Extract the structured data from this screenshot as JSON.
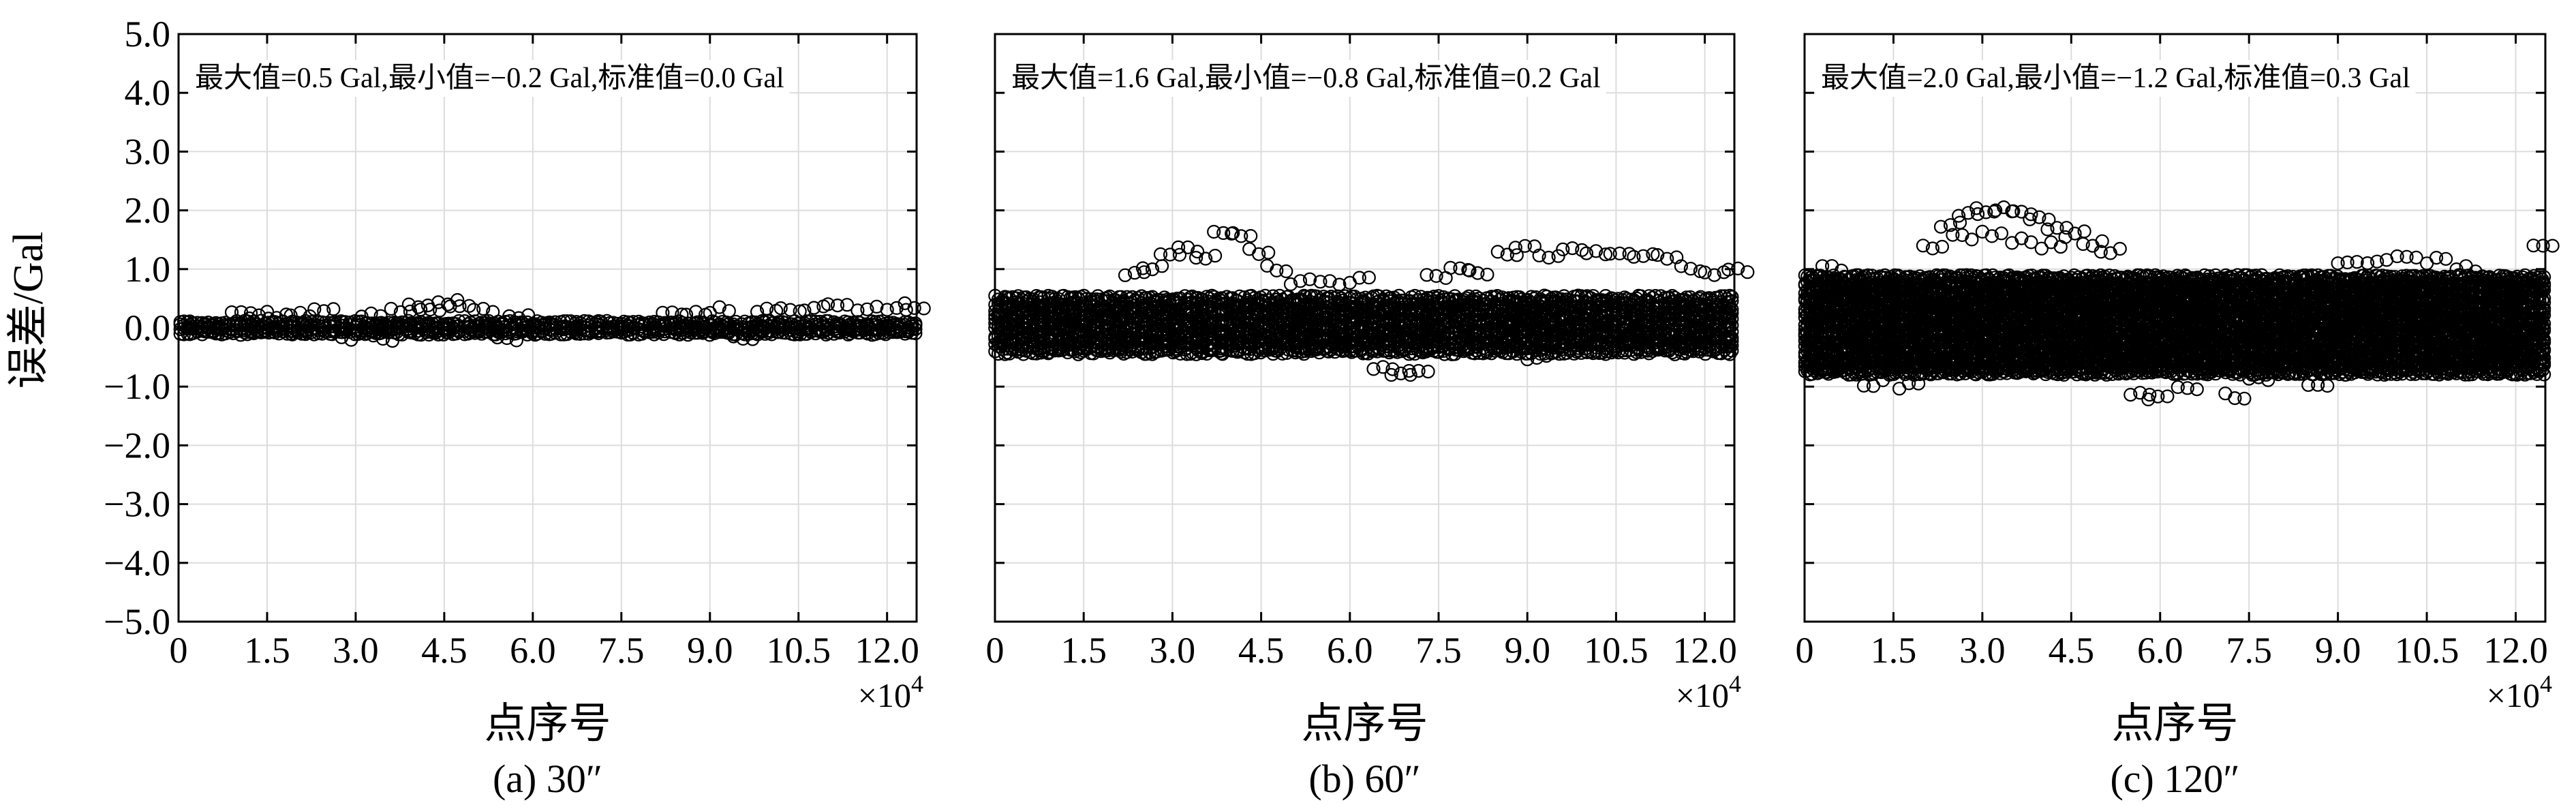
{
  "figure": {
    "ylabel": "误差/Gal",
    "xlabel": "点序号",
    "x_multiplier": "×10",
    "x_multiplier_exp": "4",
    "scatter_color": "#000000",
    "grid_color": "#dcdcdc"
  },
  "chart_data": [
    {
      "type": "scatter",
      "caption": "(a) 30″",
      "annotation": "最大值=0.5 Gal,最小值=−0.2 Gal,标准值=0.0 Gal",
      "xlabel": "点序号",
      "ylabel": "误差/Gal",
      "xlim": [
        0,
        12.5
      ],
      "ylim": [
        -5.0,
        5.0
      ],
      "x_ticks": [
        0,
        1.5,
        3.0,
        4.5,
        6.0,
        7.5,
        9.0,
        10.5,
        12.0
      ],
      "x_tick_labels": [
        "0",
        "1.5",
        "3.0",
        "4.5",
        "6.0",
        "7.5",
        "9.0",
        "10.5",
        "12.0"
      ],
      "y_ticks": [
        -5.0,
        -4.0,
        -3.0,
        -2.0,
        -1.0,
        0.0,
        1.0,
        2.0,
        3.0,
        4.0,
        5.0
      ],
      "y_tick_labels": [
        "−5.0",
        "−4.0",
        "−3.0",
        "−2.0",
        "−1.0",
        "0.0",
        "1.0",
        "2.0",
        "3.0",
        "4.0",
        "5.0"
      ],
      "grid": true,
      "stats": {
        "max": 0.5,
        "min": -0.2,
        "std": 0.0
      },
      "band": {
        "min": -0.12,
        "max": 0.12
      },
      "outliers": [
        [
          0.9,
          0.22
        ],
        [
          1.2,
          0.2
        ],
        [
          1.5,
          0.22
        ],
        [
          1.9,
          0.2
        ],
        [
          2.3,
          0.27
        ],
        [
          2.6,
          -0.15
        ],
        [
          3.1,
          0.22
        ],
        [
          3.3,
          -0.18
        ],
        [
          3.6,
          0.3
        ],
        [
          3.9,
          0.35
        ],
        [
          4.1,
          0.28
        ],
        [
          4.4,
          0.45
        ],
        [
          4.6,
          0.42
        ],
        [
          5.0,
          0.3
        ],
        [
          5.4,
          -0.17
        ],
        [
          5.6,
          0.2
        ],
        [
          8.2,
          0.22
        ],
        [
          8.6,
          0.25
        ],
        [
          9.0,
          0.3
        ],
        [
          9.4,
          -0.15
        ],
        [
          9.8,
          0.28
        ],
        [
          10.2,
          0.3
        ],
        [
          10.6,
          0.35
        ],
        [
          11.0,
          0.38
        ],
        [
          11.5,
          0.35
        ],
        [
          12.0,
          0.3
        ],
        [
          12.3,
          0.38
        ]
      ],
      "point_density": 0.8
    },
    {
      "type": "scatter",
      "caption": "(b) 60″",
      "annotation": "最大值=1.6 Gal,最小值=−0.8 Gal,标准值=0.2 Gal",
      "xlabel": "点序号",
      "ylabel": "",
      "xlim": [
        0,
        12.5
      ],
      "ylim": [
        -5.0,
        5.0
      ],
      "x_ticks": [
        0,
        1.5,
        3.0,
        4.5,
        6.0,
        7.5,
        9.0,
        10.5,
        12.0
      ],
      "x_tick_labels": [
        "0",
        "1.5",
        "3.0",
        "4.5",
        "6.0",
        "7.5",
        "9.0",
        "10.5",
        "12.0"
      ],
      "y_ticks": [
        -5.0,
        -4.0,
        -3.0,
        -2.0,
        -1.0,
        0.0,
        1.0,
        2.0,
        3.0,
        4.0,
        5.0
      ],
      "grid": true,
      "stats": {
        "max": 1.6,
        "min": -0.8,
        "std": 0.2
      },
      "band": {
        "min": -0.45,
        "max": 0.55
      },
      "outliers": [
        [
          2.2,
          0.9
        ],
        [
          2.5,
          1.0
        ],
        [
          2.8,
          1.3
        ],
        [
          3.1,
          1.35
        ],
        [
          3.4,
          1.2
        ],
        [
          3.7,
          1.6
        ],
        [
          4.0,
          1.55
        ],
        [
          4.3,
          1.3
        ],
        [
          4.6,
          1.0
        ],
        [
          5.0,
          0.8
        ],
        [
          5.5,
          0.75
        ],
        [
          6.0,
          0.8
        ],
        [
          6.4,
          -0.7
        ],
        [
          6.7,
          -0.8
        ],
        [
          7.0,
          -0.75
        ],
        [
          7.3,
          0.9
        ],
        [
          7.7,
          1.0
        ],
        [
          8.0,
          0.95
        ],
        [
          8.5,
          1.25
        ],
        [
          8.8,
          1.35
        ],
        [
          9.2,
          1.2
        ],
        [
          9.6,
          1.3
        ],
        [
          10.0,
          1.25
        ],
        [
          10.4,
          1.3
        ],
        [
          10.8,
          1.2
        ],
        [
          11.2,
          1.2
        ],
        [
          11.6,
          1.0
        ],
        [
          12.0,
          0.9
        ],
        [
          12.4,
          1.0
        ],
        [
          3.5,
          -0.4
        ],
        [
          9.0,
          -0.5
        ]
      ],
      "point_density": 1.0
    },
    {
      "type": "scatter",
      "caption": "(c) 120″",
      "annotation": "最大值=2.0 Gal,最小值=−1.2 Gal,标准值=0.3 Gal",
      "xlabel": "点序号",
      "ylabel": "",
      "xlim": [
        0,
        12.5
      ],
      "ylim": [
        -5.0,
        5.0
      ],
      "x_ticks": [
        0,
        1.5,
        3.0,
        4.5,
        6.0,
        7.5,
        9.0,
        10.5,
        12.0
      ],
      "x_tick_labels": [
        "0",
        "1.5",
        "3.0",
        "4.5",
        "6.0",
        "7.5",
        "9.0",
        "10.5",
        "12.0"
      ],
      "y_ticks": [
        -5.0,
        -4.0,
        -3.0,
        -2.0,
        -1.0,
        0.0,
        1.0,
        2.0,
        3.0,
        4.0,
        5.0
      ],
      "grid": true,
      "stats": {
        "max": 2.0,
        "min": -1.2,
        "std": 0.3
      },
      "band": {
        "min": -0.8,
        "max": 0.9
      },
      "outliers": [
        [
          2.0,
          1.4
        ],
        [
          2.3,
          1.75
        ],
        [
          2.6,
          1.95
        ],
        [
          2.9,
          2.0
        ],
        [
          3.2,
          2.0
        ],
        [
          3.5,
          1.95
        ],
        [
          3.8,
          1.85
        ],
        [
          4.1,
          1.7
        ],
        [
          4.4,
          1.6
        ],
        [
          4.7,
          1.45
        ],
        [
          5.0,
          1.3
        ],
        [
          2.5,
          1.55
        ],
        [
          3.0,
          1.6
        ],
        [
          3.5,
          1.5
        ],
        [
          4.0,
          1.4
        ],
        [
          5.5,
          -1.1
        ],
        [
          5.8,
          -1.2
        ],
        [
          6.3,
          -1.0
        ],
        [
          7.1,
          -1.15
        ],
        [
          7.5,
          -0.9
        ],
        [
          9.0,
          1.1
        ],
        [
          9.5,
          1.15
        ],
        [
          10.0,
          1.2
        ],
        [
          10.5,
          1.15
        ],
        [
          11.0,
          1.0
        ],
        [
          12.3,
          1.4
        ],
        [
          0.3,
          1.0
        ],
        [
          1.0,
          -0.95
        ],
        [
          1.6,
          -1.0
        ],
        [
          8.5,
          -0.95
        ]
      ],
      "point_density": 1.2
    }
  ]
}
